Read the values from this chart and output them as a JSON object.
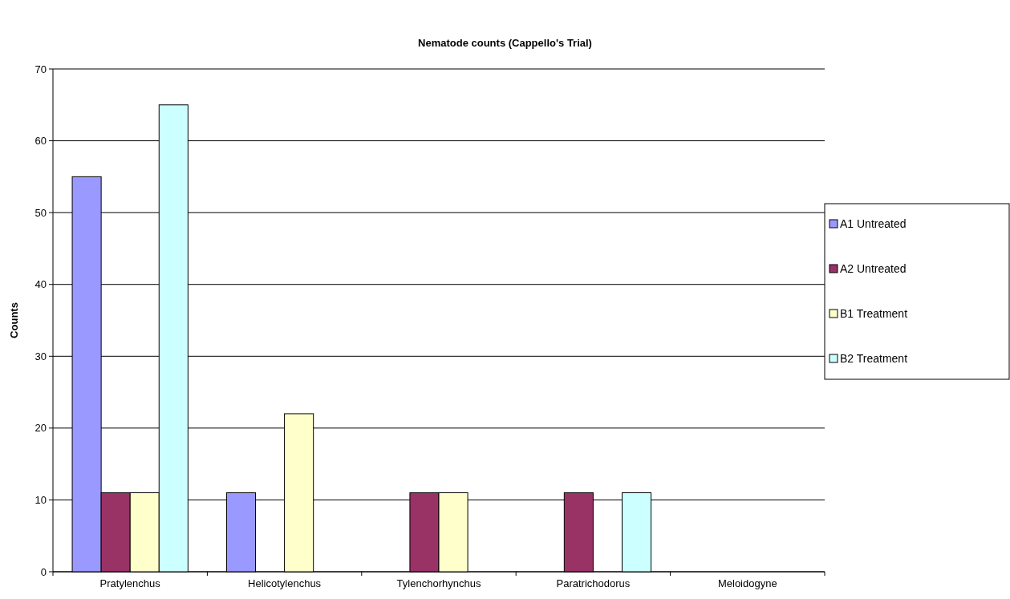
{
  "chart_data": {
    "type": "bar",
    "title": "Nematode counts (Cappello's Trial)",
    "ylabel": "Counts",
    "categories": [
      "Pratylenchus",
      "Helicotylenchus",
      "Tylenchorhynchus",
      "Paratrichodorus",
      "Meloidogyne"
    ],
    "series": [
      {
        "name": "A1 Untreated",
        "color": "#9999ff",
        "values": [
          55,
          11,
          0,
          0,
          0
        ]
      },
      {
        "name": "A2 Untreated",
        "color": "#993366",
        "values": [
          11,
          0,
          11,
          11,
          0
        ]
      },
      {
        "name": "B1 Treatment",
        "color": "#ffffcc",
        "values": [
          11,
          22,
          11,
          0,
          0
        ]
      },
      {
        "name": "B2 Treatment",
        "color": "#ccffff",
        "values": [
          65,
          0,
          0,
          11,
          0
        ]
      }
    ],
    "ylim": [
      0,
      70
    ],
    "yticks": [
      0,
      10,
      20,
      30,
      40,
      50,
      60,
      70
    ],
    "grid": "y",
    "legend": "right"
  }
}
